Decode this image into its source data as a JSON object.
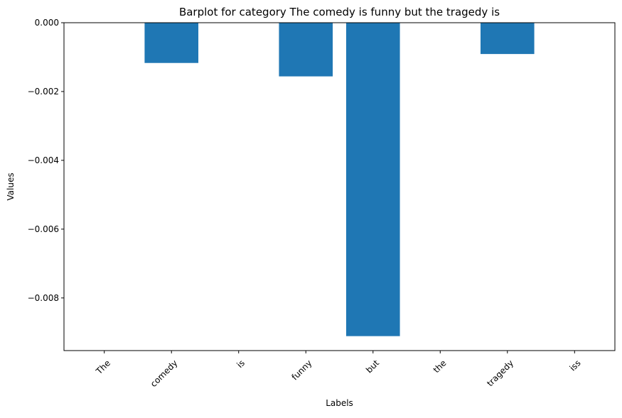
{
  "chart_data": {
    "type": "bar",
    "title": "Barplot for category The comedy is funny but the tragedy is",
    "xlabel": "Labels",
    "ylabel": "Values",
    "categories": [
      "The",
      "comedy",
      "is",
      "funny",
      "but",
      "the",
      "tragedy",
      "iss"
    ],
    "values": [
      0,
      -0.00117,
      0,
      -0.00156,
      -0.00911,
      0,
      -0.00091,
      0
    ],
    "ylim": [
      -0.00953,
      0.0
    ],
    "yticks": [
      0.0,
      -0.002,
      -0.004,
      -0.006,
      -0.008
    ],
    "ytick_labels": [
      "0.000",
      "−0.002",
      "−0.004",
      "−0.006",
      "−0.008"
    ],
    "grid": false,
    "x_tick_rotation": 45,
    "bar_color": "#1f77b4"
  }
}
